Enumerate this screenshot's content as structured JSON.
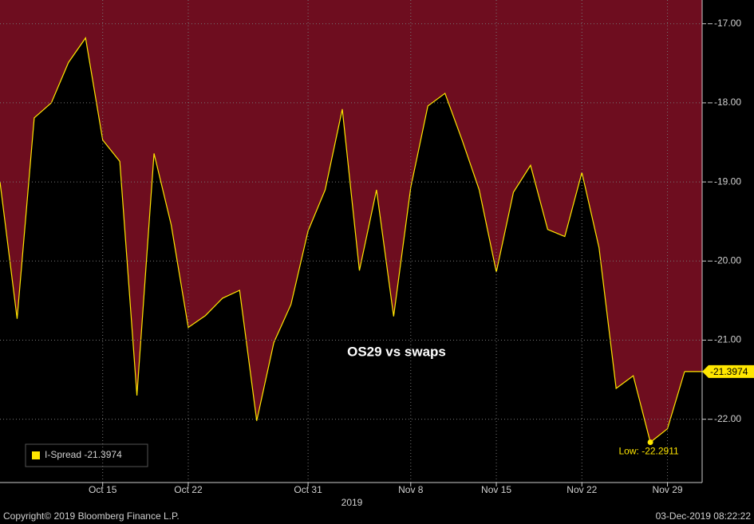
{
  "chart_data": {
    "type": "line",
    "title": "OS29 vs swaps",
    "x_label": "2019",
    "categories": [
      null,
      null,
      null,
      null,
      null,
      null,
      "Oct 15",
      null,
      null,
      null,
      null,
      "Oct 22",
      null,
      null,
      null,
      null,
      null,
      null,
      "Oct 31",
      null,
      null,
      null,
      null,
      null,
      "Nov 8",
      null,
      null,
      null,
      null,
      "Nov 15",
      null,
      null,
      null,
      null,
      "Nov 22",
      null,
      null,
      null,
      null,
      "Nov 29",
      null
    ],
    "series": [
      {
        "name": "I-Spread",
        "color": "#ffe600",
        "values": [
          -19.0,
          -20.73,
          -18.19,
          -18.0,
          -17.49,
          -17.18,
          -18.47,
          -18.74,
          -21.7,
          -18.64,
          -19.54,
          -20.84,
          -20.69,
          -20.47,
          -20.37,
          -22.02,
          -21.03,
          -20.55,
          -19.62,
          -19.1,
          -18.08,
          -20.12,
          -19.1,
          -20.7,
          -19.07,
          -18.04,
          -17.88,
          -18.47,
          -19.1,
          -20.14,
          -19.13,
          -18.79,
          -19.6,
          -19.69,
          -18.88,
          -19.83,
          -21.61,
          -21.45,
          -22.2911,
          -22.12,
          -21.3974
        ]
      }
    ],
    "low_label": "Low:",
    "low_index": 38,
    "ylim": [
      -22.8,
      -16.7
    ],
    "yticks": [
      {
        "value": -17,
        "label": "-17.00"
      },
      {
        "value": -18,
        "label": "-18.00"
      },
      {
        "value": -19,
        "label": "-19.00"
      },
      {
        "value": -20,
        "label": "-20.00"
      },
      {
        "value": -21,
        "label": "-21.00"
      },
      {
        "value": -22,
        "label": "-22.00"
      }
    ],
    "grid": true,
    "fill_above": "#6e0d1f",
    "fill_below": "#000000",
    "footer": {
      "left": "Copyright© 2019 Bloomberg Finance L.P.",
      "right": "03-Dec-2019 08:22:22"
    }
  }
}
